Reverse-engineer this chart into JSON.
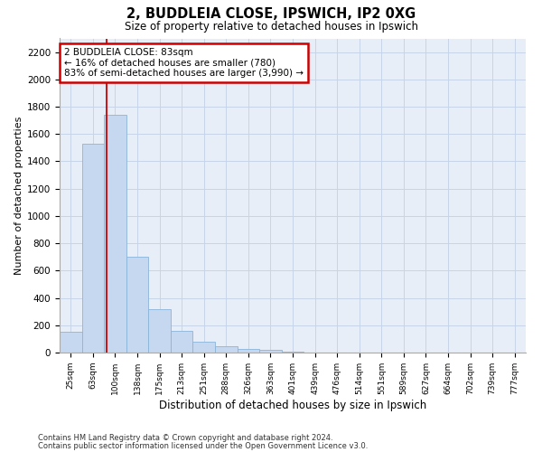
{
  "title1": "2, BUDDLEIA CLOSE, IPSWICH, IP2 0XG",
  "title2": "Size of property relative to detached houses in Ipswich",
  "xlabel": "Distribution of detached houses by size in Ipswich",
  "ylabel": "Number of detached properties",
  "categories": [
    "25sqm",
    "63sqm",
    "100sqm",
    "138sqm",
    "175sqm",
    "213sqm",
    "251sqm",
    "288sqm",
    "326sqm",
    "363sqm",
    "401sqm",
    "439sqm",
    "476sqm",
    "514sqm",
    "551sqm",
    "589sqm",
    "627sqm",
    "664sqm",
    "702sqm",
    "739sqm",
    "777sqm"
  ],
  "values": [
    150,
    1530,
    1740,
    700,
    315,
    160,
    80,
    45,
    28,
    18,
    8,
    3,
    2,
    1,
    0,
    0,
    0,
    0,
    0,
    0,
    0
  ],
  "bar_color": "#c5d8f0",
  "bar_edge_color": "#8ab4d8",
  "property_line_x": 1.62,
  "annotation_text": "2 BUDDLEIA CLOSE: 83sqm\n← 16% of detached houses are smaller (780)\n83% of semi-detached houses are larger (3,990) →",
  "annotation_box_color": "#ffffff",
  "annotation_box_edge": "#cc0000",
  "vline_color": "#cc0000",
  "footnote1": "Contains HM Land Registry data © Crown copyright and database right 2024.",
  "footnote2": "Contains public sector information licensed under the Open Government Licence v3.0.",
  "ylim": [
    0,
    2300
  ],
  "yticks": [
    0,
    200,
    400,
    600,
    800,
    1000,
    1200,
    1400,
    1600,
    1800,
    2000,
    2200
  ],
  "grid_color": "#c8d4e8",
  "background_color": "#e8eef8"
}
